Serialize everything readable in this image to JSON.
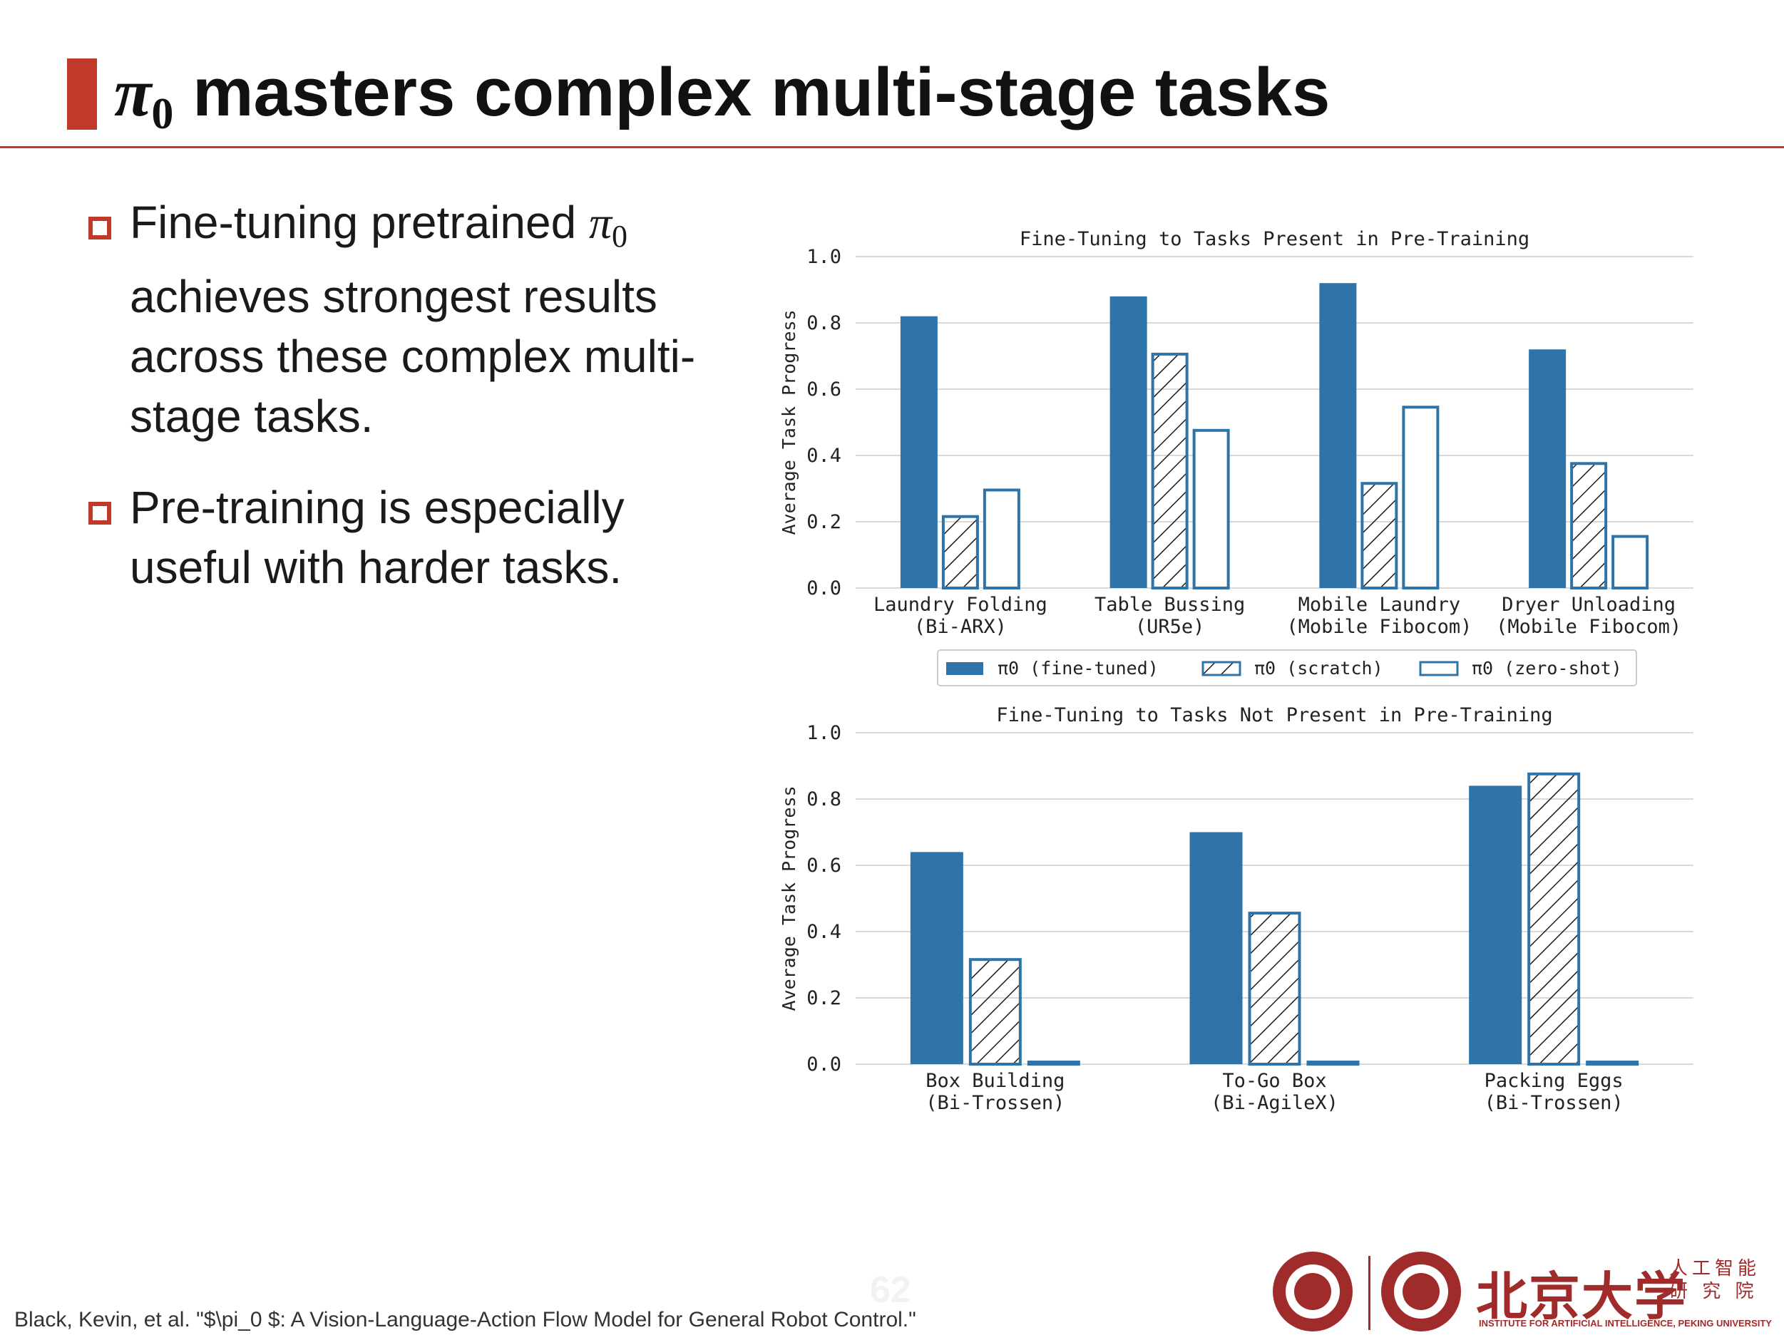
{
  "slide": {
    "title_pi": "π",
    "title_sub": "0",
    "title_rest": " masters complex multi-stage tasks",
    "bullets": [
      {
        "pre": "Fine-tuning pretrained ",
        "pi": "π",
        "sub": "0",
        "post": " achieves strongest results across these complex multi-stage tasks."
      },
      {
        "pre": "Pre-training is especially useful with harder tasks.",
        "pi": "",
        "sub": "",
        "post": ""
      }
    ],
    "citation": "Black, Kevin, et al. \"$\\pi_0 $: A Vision-Language-Action Flow Model for General Robot Control.\"",
    "page_number": "62",
    "logo": {
      "university_cn": "北京大学",
      "institute_cn": "人工智能 研 究 院",
      "institute_en": "INSTITUTE FOR ARTIFICIAL INTELLIGENCE, PEKING UNIVERSITY"
    }
  },
  "colors": {
    "accent": "#c0392b",
    "bar": "#2e74a8",
    "grid": "#d9d9d9"
  },
  "chart_data": [
    {
      "type": "bar",
      "title": "Fine-Tuning to Tasks Present in Pre-Training",
      "ylabel": "Average Task Progress",
      "ylim": [
        0,
        1.0
      ],
      "yticks": [
        "0.0",
        "0.2",
        "0.4",
        "0.6",
        "0.8",
        "1.0"
      ],
      "grid": true,
      "categories": [
        [
          "Laundry Folding",
          "(Bi-ARX)"
        ],
        [
          "Table Bussing",
          "(UR5e)"
        ],
        [
          "Mobile Laundry",
          "(Mobile Fibocom)"
        ],
        [
          "Dryer Unloading",
          "(Mobile Fibocom)"
        ]
      ],
      "series": [
        {
          "name": "π0 (fine-tuned)",
          "style": "solid",
          "values": [
            0.82,
            0.88,
            0.92,
            0.72
          ]
        },
        {
          "name": "π0 (scratch)",
          "style": "hatched",
          "values": [
            0.22,
            0.71,
            0.32,
            0.38
          ]
        },
        {
          "name": "π0 (zero-shot)",
          "style": "outline",
          "values": [
            0.3,
            0.48,
            0.55,
            0.16
          ]
        }
      ],
      "legend": "bottom-center"
    },
    {
      "type": "bar",
      "title": "Fine-Tuning to Tasks Not Present in Pre-Training",
      "ylabel": "Average Task Progress",
      "ylim": [
        0,
        1.0
      ],
      "yticks": [
        "0.0",
        "0.2",
        "0.4",
        "0.6",
        "0.8",
        "1.0"
      ],
      "grid": true,
      "categories": [
        [
          "Box Building",
          "(Bi-Trossen)"
        ],
        [
          "To-Go Box",
          "(Bi-AgileX)"
        ],
        [
          "Packing Eggs",
          "(Bi-Trossen)"
        ]
      ],
      "series": [
        {
          "name": "π0 (fine-tuned)",
          "style": "solid",
          "values": [
            0.64,
            0.7,
            0.84
          ]
        },
        {
          "name": "π0 (scratch)",
          "style": "hatched",
          "values": [
            0.32,
            0.46,
            0.88
          ]
        },
        {
          "name": "π0 (zero-shot)",
          "style": "outline",
          "values": [
            0.0,
            0.0,
            0.0
          ]
        }
      ],
      "legend": "none"
    }
  ]
}
